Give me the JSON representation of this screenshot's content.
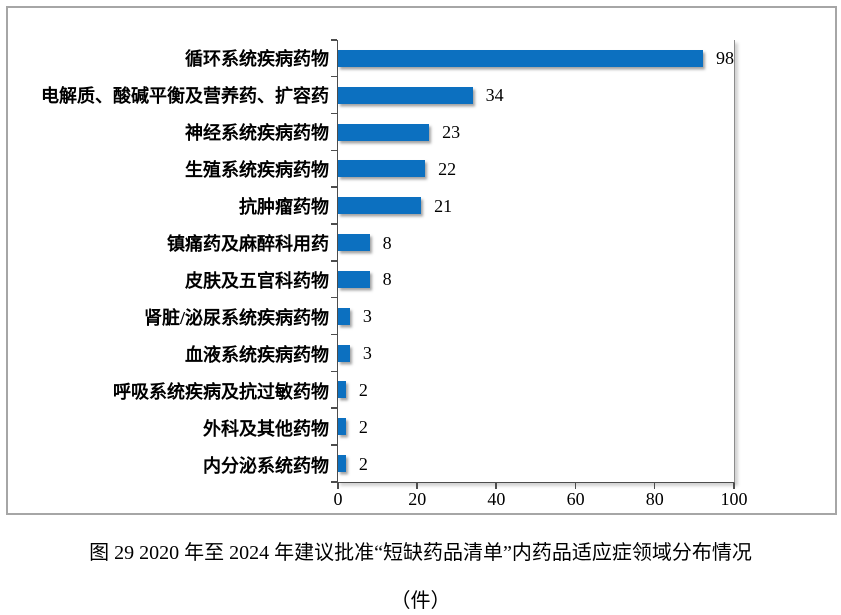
{
  "chart_data": {
    "type": "bar",
    "orientation": "horizontal",
    "categories": [
      "循环系统疾病药物",
      "电解质、酸碱平衡及营养药、扩容药",
      "神经系统疾病药物",
      "生殖系统疾病药物",
      "抗肿瘤药物",
      "镇痛药及麻醉科用药",
      "皮肤及五官科药物",
      "肾脏/泌尿系统疾病药物",
      "血液系统疾病药物",
      "呼吸系统疾病及抗过敏药物",
      "外科及其他药物",
      "内分泌系统药物"
    ],
    "values": [
      98,
      34,
      23,
      22,
      21,
      8,
      8,
      3,
      3,
      2,
      2,
      2
    ],
    "xlim": [
      0,
      100
    ],
    "x_ticks": [
      0,
      20,
      40,
      60,
      80,
      100
    ],
    "grid": false,
    "data_labels": true,
    "bar_color": "#0c70c0",
    "axis_color": "#4d4d4d",
    "frame_border_color": "#a6a6a6"
  },
  "caption": {
    "line1": "图 29  2020 年至 2024 年建议批准“短缺药品清单”内药品适应症领域分布情况",
    "line2": "（件）"
  }
}
